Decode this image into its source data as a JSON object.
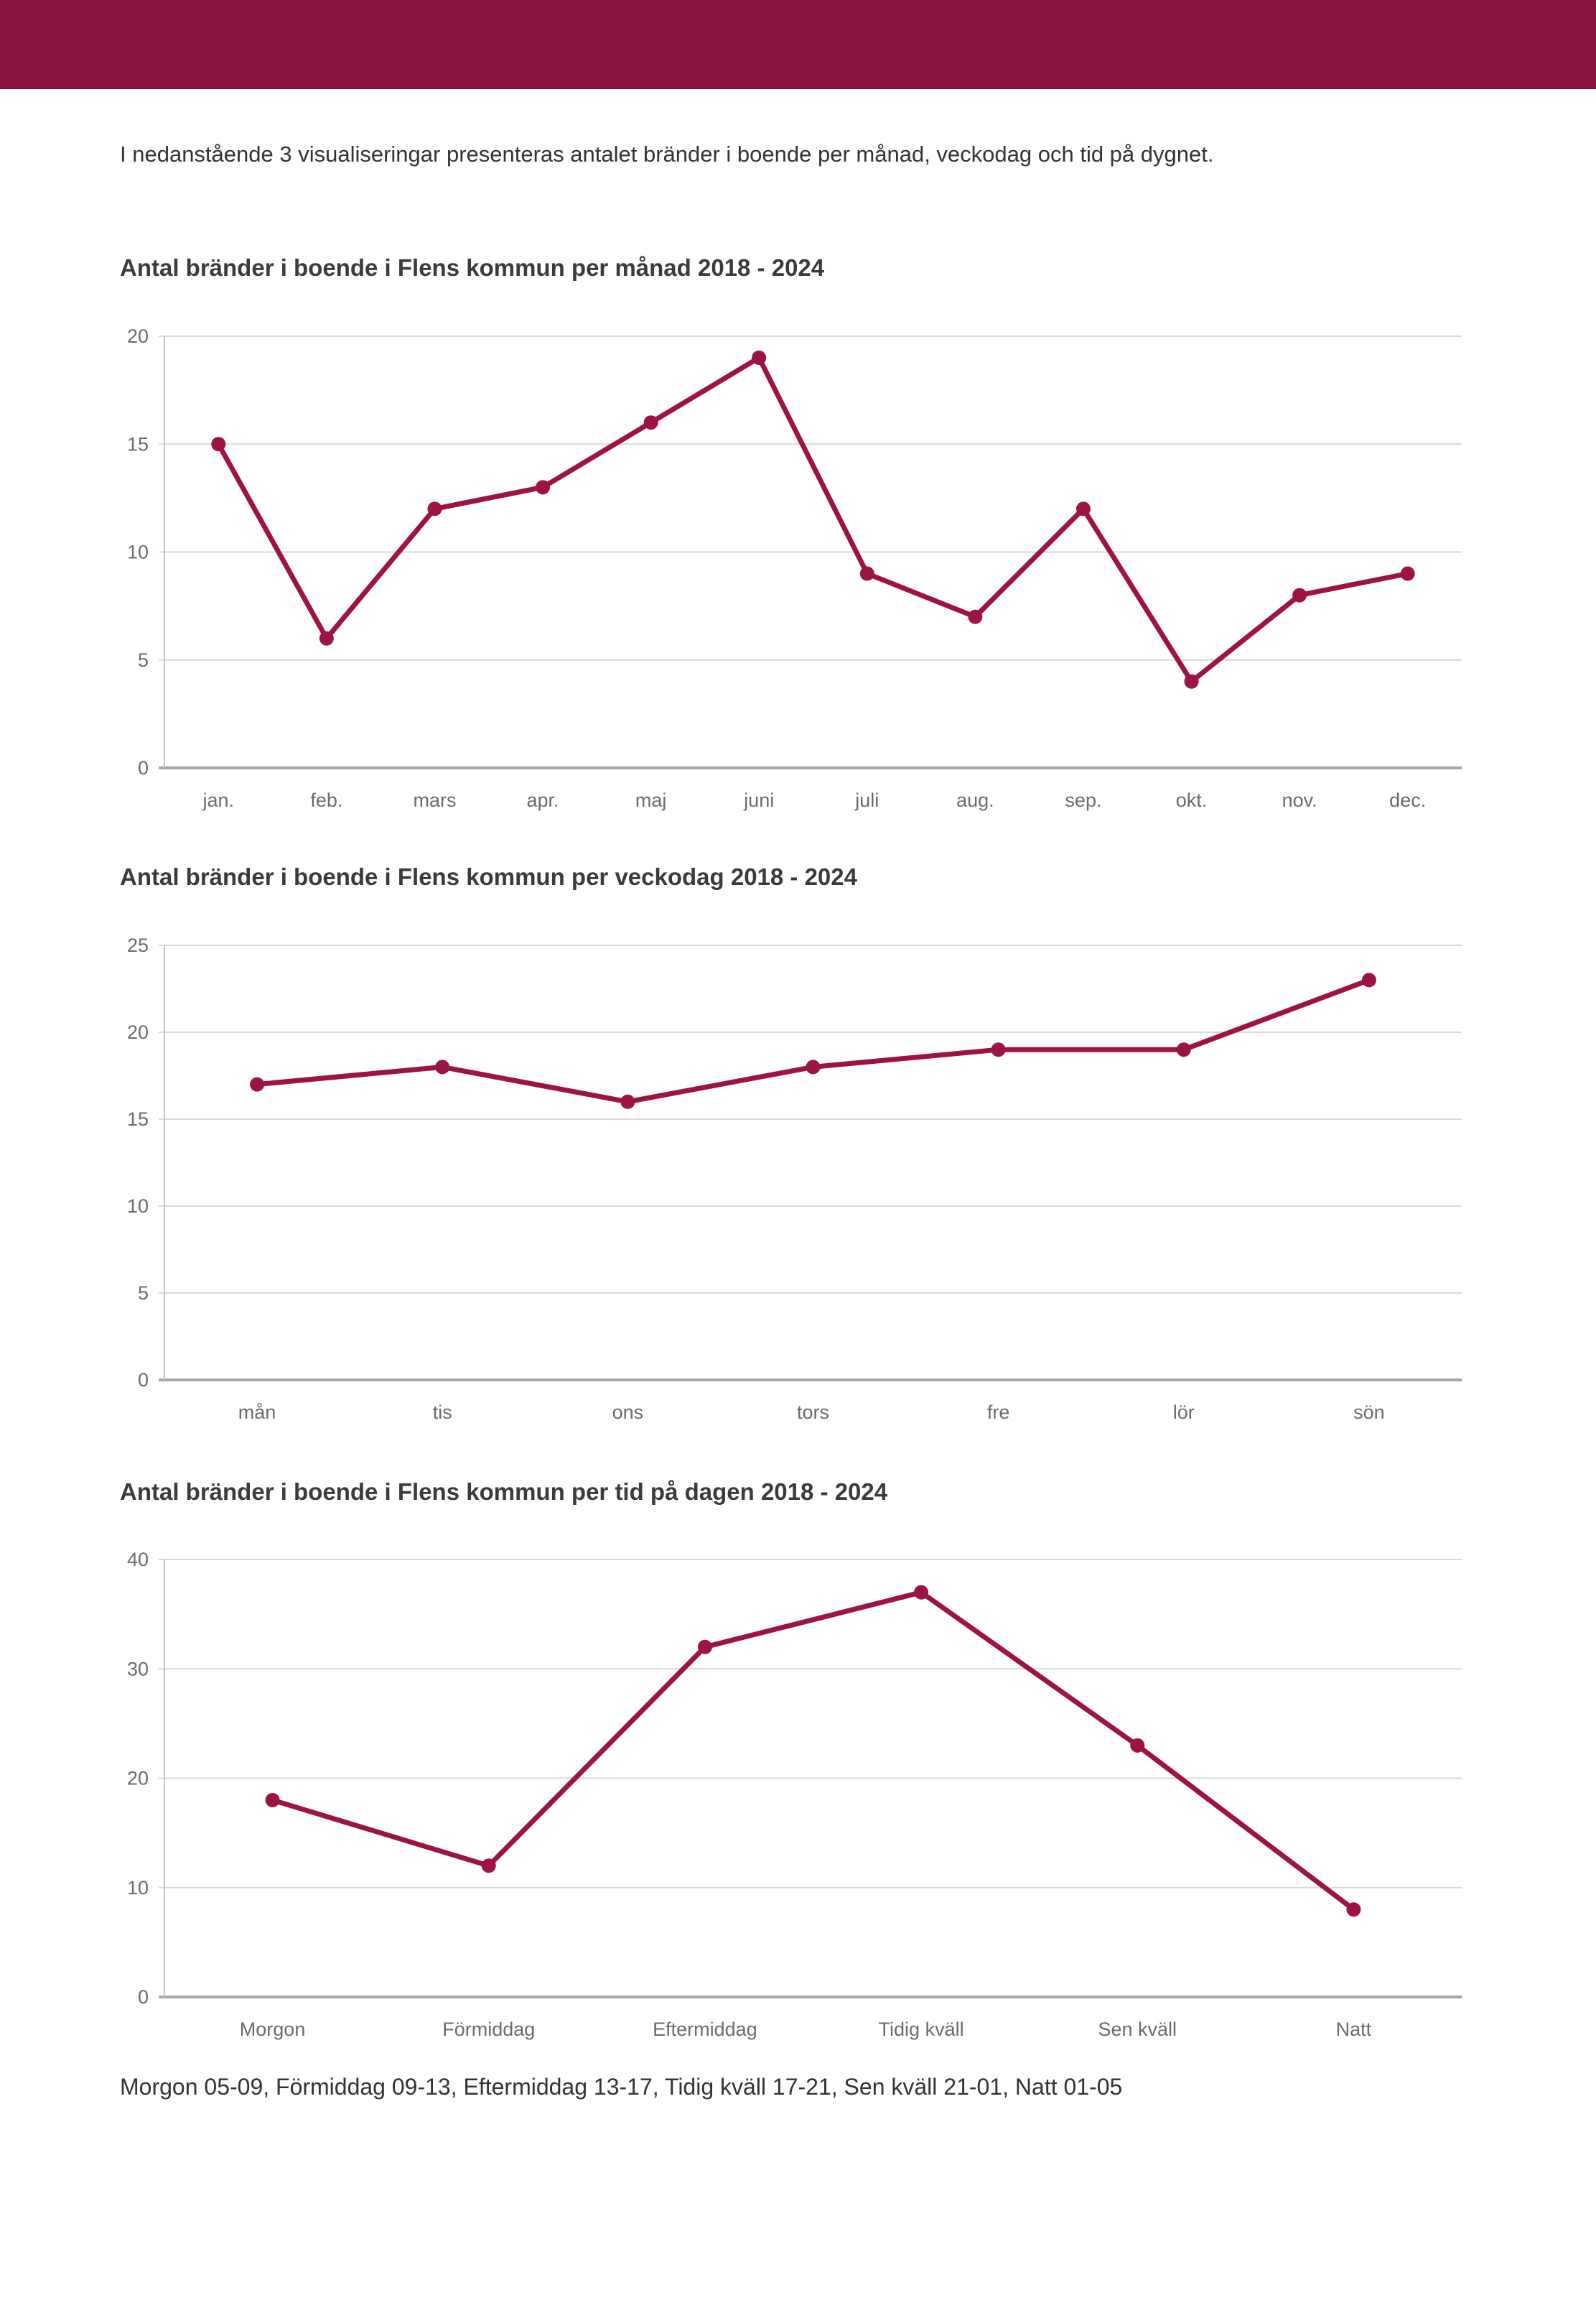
{
  "intro": "I nedanstående 3 visualiseringar presenteras antalet bränder i boende per månad, veckodag och tid på dygnet.",
  "footer_note": "Morgon 05-09, Förmiddag 09-13, Eftermiddag 13-17, Tidig kväll 17-21, Sen kväll 21-01, Natt 01-05",
  "theme": {
    "header_bar_color": "#8d1440",
    "line_color": "#9d1345",
    "marker_color": "#9d1345",
    "grid_color": "#d9d9d9",
    "zero_line_color": "#a6a6a6",
    "axis_line_color": "#c4c4c4",
    "tick_label_color": "#6b6b6b",
    "title_color": "#3b3b3b",
    "body_text_color": "#333333",
    "background_color": "#ffffff"
  },
  "chart_data": [
    {
      "type": "line",
      "title": "Antal bränder i boende i Flens kommun per månad 2018 - 2024",
      "categories": [
        "jan.",
        "feb.",
        "mars",
        "apr.",
        "maj",
        "juni",
        "juli",
        "aug.",
        "sep.",
        "okt.",
        "nov.",
        "dec."
      ],
      "values": [
        15,
        6,
        12,
        13,
        16,
        19,
        9,
        7,
        12,
        4,
        8,
        9
      ],
      "xlabel": "",
      "ylabel": "",
      "ylim": [
        0,
        20
      ],
      "yticks": [
        0,
        5,
        10,
        15,
        20
      ],
      "grid": true,
      "legend": "none"
    },
    {
      "type": "line",
      "title": "Antal bränder i boende i Flens kommun per veckodag 2018 - 2024",
      "categories": [
        "mån",
        "tis",
        "ons",
        "tors",
        "fre",
        "lör",
        "sön"
      ],
      "values": [
        17,
        18,
        16,
        18,
        19,
        19,
        23
      ],
      "xlabel": "",
      "ylabel": "",
      "ylim": [
        0,
        25
      ],
      "yticks": [
        0,
        5,
        10,
        15,
        20,
        25
      ],
      "grid": true,
      "legend": "none"
    },
    {
      "type": "line",
      "title": "Antal bränder i boende i Flens kommun per tid på dagen 2018 - 2024",
      "categories": [
        "Morgon",
        "Förmiddag",
        "Eftermiddag",
        "Tidig kväll",
        "Sen kväll",
        "Natt"
      ],
      "values": [
        18,
        12,
        32,
        37,
        23,
        8
      ],
      "xlabel": "",
      "ylabel": "",
      "ylim": [
        0,
        40
      ],
      "yticks": [
        0,
        10,
        20,
        30,
        40
      ],
      "grid": true,
      "legend": "none"
    }
  ]
}
